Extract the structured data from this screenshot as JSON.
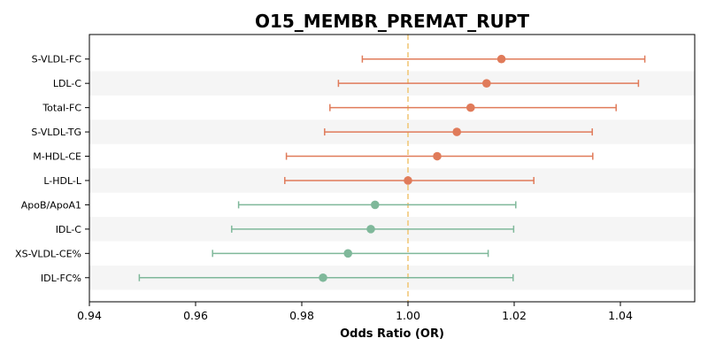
{
  "chart_data": {
    "type": "forest",
    "title": "O15_MEMBR_PREMAT_RUPT",
    "xlabel": "Odds Ratio (OR)",
    "xlim": [
      0.94,
      1.054
    ],
    "xticks": [
      0.94,
      0.96,
      0.98,
      1.0,
      1.02,
      1.04
    ],
    "xtick_labels": [
      "0.94",
      "0.96",
      "0.98",
      "1.00",
      "1.02",
      "1.04"
    ],
    "reference_line": 1.0,
    "colors": {
      "positive": "#e07b5a",
      "negative": "#7fb89a",
      "reference": "#f2c879",
      "band": "#f5f5f5"
    },
    "rows": [
      {
        "label": "S-VLDL-FC",
        "or": 1.0176,
        "lower": 0.9914,
        "upper": 1.0446
      },
      {
        "label": "LDL-C",
        "or": 1.0148,
        "lower": 0.9869,
        "upper": 1.0434
      },
      {
        "label": "Total-FC",
        "or": 1.0118,
        "lower": 0.9853,
        "upper": 1.0392
      },
      {
        "label": "S-VLDL-TG",
        "or": 1.0092,
        "lower": 0.9843,
        "upper": 1.0347
      },
      {
        "label": "M-HDL-CE",
        "or": 1.0055,
        "lower": 0.9771,
        "upper": 1.0348
      },
      {
        "label": "L-HDL-L",
        "or": 1.0,
        "lower": 0.9768,
        "upper": 1.0237
      },
      {
        "label": "ApoB/ApoA1",
        "or": 0.9938,
        "lower": 0.9681,
        "upper": 1.0203
      },
      {
        "label": "IDL-C",
        "or": 0.993,
        "lower": 0.9668,
        "upper": 1.0199
      },
      {
        "label": "XS-VLDL-CE%",
        "or": 0.9887,
        "lower": 0.9632,
        "upper": 1.0151
      },
      {
        "label": "IDL-FC%",
        "or": 0.984,
        "lower": 0.9494,
        "upper": 1.0198
      }
    ]
  }
}
